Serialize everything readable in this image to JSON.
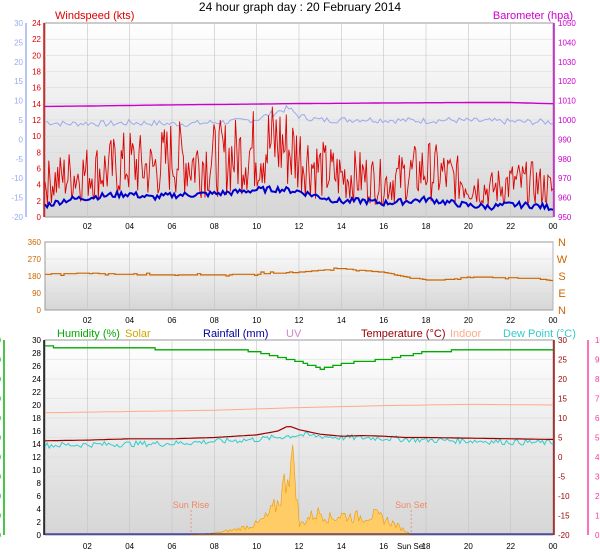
{
  "title": "24 hour graph day : 20 February 2014",
  "x_ticks": [
    "02",
    "04",
    "06",
    "08",
    "10",
    "12",
    "14",
    "16",
    "18",
    "20",
    "22",
    "00"
  ],
  "colors": {
    "wind_speed": "#dd0000",
    "wind_avg": "#0000cc",
    "barometer": "#cc00cc",
    "left_faint": "#99aaee",
    "direction": "#cc6600",
    "humidity": "#00aa00",
    "solar": "#ccaa00",
    "rainfall": "#000099",
    "uv": "#cc88cc",
    "temperature": "#990000",
    "indoor": "#ffaa88",
    "dewpoint": "#33cccc",
    "temp_axis": "#ff3399",
    "sun": "#ee8866"
  },
  "panels": {
    "wind": {
      "title_left": "Windspeed (kts)",
      "title_right": "Barometer (hpa)",
      "left_ticks": [
        "24",
        "22",
        "20",
        "18",
        "16",
        "14",
        "12",
        "10",
        "8",
        "6",
        "4",
        "2",
        "0"
      ],
      "faint_ticks": [
        "30",
        "25",
        "20",
        "15",
        "10",
        "5",
        "0",
        "-5",
        "-10",
        "-15",
        "-20"
      ],
      "right_ticks": [
        "1050",
        "1040",
        "1030",
        "1020",
        "1010",
        "1000",
        "990",
        "980",
        "970",
        "960",
        "950"
      ]
    },
    "direction": {
      "left_ticks": [
        "360",
        "270",
        "180",
        "90",
        "0"
      ],
      "compass": [
        "N",
        "W",
        "S",
        "E",
        "N"
      ]
    },
    "weather": {
      "legend": {
        "humidity": "Humidity (%)",
        "solar": "Solar",
        "rainfall": "Rainfall (mm)",
        "uv": "UV",
        "temperature": "Temperature (°C)",
        "indoor": "Indoor",
        "dewpoint": "Dew Point (°C)"
      },
      "humidity_ticks": [
        "100",
        "90",
        "80",
        "70",
        "60",
        "50",
        "40",
        "30",
        "20",
        "10",
        "0"
      ],
      "temp_ticks": [
        "30",
        "28",
        "26",
        "24",
        "22",
        "20",
        "18",
        "16",
        "14",
        "12",
        "10",
        "8",
        "6",
        "4",
        "2",
        "0"
      ],
      "right_ticks_a": [
        "30",
        "25",
        "20",
        "15",
        "10",
        "5",
        "0",
        "-5",
        "-10",
        "-15",
        "-20"
      ],
      "right_ticks_b": [
        "10",
        "9",
        "8",
        "7",
        "6",
        "5",
        "4",
        "3",
        "2",
        "1",
        "0"
      ],
      "sun_rise": "Sun Rise",
      "sun_set": "Sun Set",
      "bottom_ticks": [
        "02",
        "04",
        "06",
        "08",
        "10",
        "12",
        "14",
        "16",
        "Sun Set",
        "18",
        "20",
        "22",
        "00"
      ]
    }
  },
  "chart_data": [
    {
      "type": "line",
      "title": "Windspeed (kts)",
      "x_unit": "hour",
      "ylim": [
        0,
        25
      ],
      "series": [
        {
          "values": [
            [
              0,
              5
            ],
            [
              1,
              6
            ],
            [
              2,
              6.5
            ],
            [
              3,
              7
            ],
            [
              4,
              8
            ],
            [
              5,
              7
            ],
            [
              6,
              9
            ],
            [
              7,
              8
            ],
            [
              8,
              8.5
            ],
            [
              9,
              9
            ],
            [
              10,
              10
            ],
            [
              11,
              11
            ],
            [
              12,
              9
            ],
            [
              13,
              7
            ],
            [
              14,
              6
            ],
            [
              15,
              6
            ],
            [
              16,
              5
            ],
            [
              17,
              6
            ],
            [
              18,
              7
            ],
            [
              19,
              6
            ],
            [
              20,
              5
            ],
            [
              21,
              4
            ],
            [
              22,
              5
            ],
            [
              23,
              5
            ],
            [
              24,
              4
            ]
          ]
        },
        {
          "values": [
            [
              0,
              1.5
            ],
            [
              1,
              2.2
            ],
            [
              2,
              2.5
            ],
            [
              3,
              2.8
            ],
            [
              4,
              3
            ],
            [
              5,
              2.5
            ],
            [
              6,
              2.8
            ],
            [
              7,
              2.9
            ],
            [
              8,
              3
            ],
            [
              9,
              3.2
            ],
            [
              10,
              3.5
            ],
            [
              11,
              3.6
            ],
            [
              12,
              3.3
            ],
            [
              13,
              2.6
            ],
            [
              14,
              2
            ],
            [
              15,
              2.1
            ],
            [
              16,
              1.8
            ],
            [
              17,
              2
            ],
            [
              18,
              2.3
            ],
            [
              19,
              1.9
            ],
            [
              20,
              1.5
            ],
            [
              21,
              1.3
            ],
            [
              22,
              1.6
            ],
            [
              23,
              1.5
            ],
            [
              24,
              1.2
            ]
          ]
        }
      ]
    },
    {
      "type": "line",
      "title": "Barometer (hpa)",
      "x_unit": "hour",
      "ylim": [
        950,
        1050
      ],
      "series": [
        {
          "values": [
            [
              0,
              1007
            ],
            [
              2,
              1007.2
            ],
            [
              4,
              1007.5
            ],
            [
              6,
              1007.8
            ],
            [
              8,
              1008
            ],
            [
              10,
              1008.2
            ],
            [
              12,
              1008.5
            ],
            [
              14,
              1008.6
            ],
            [
              16,
              1008.8
            ],
            [
              18,
              1008.9
            ],
            [
              20,
              1009
            ],
            [
              22,
              1009
            ],
            [
              24,
              1008.4
            ]
          ]
        }
      ]
    },
    {
      "type": "line",
      "x_unit": "hour",
      "ylim": [
        -20,
        30
      ],
      "series": [
        {
          "values": [
            [
              0,
              4.5
            ],
            [
              1,
              4
            ],
            [
              2,
              4.2
            ],
            [
              3,
              4
            ],
            [
              4,
              4.3
            ],
            [
              5,
              4.2
            ],
            [
              6,
              4
            ],
            [
              7,
              4.1
            ],
            [
              8,
              4.4
            ],
            [
              9,
              4.6
            ],
            [
              10,
              5.2
            ],
            [
              11,
              7.2
            ],
            [
              11.5,
              8
            ],
            [
              12,
              6
            ],
            [
              13,
              5
            ],
            [
              14,
              5
            ],
            [
              15,
              5.2
            ],
            [
              16,
              5
            ],
            [
              17,
              4.9
            ],
            [
              18,
              4.8
            ],
            [
              19,
              5
            ],
            [
              20,
              4.8
            ],
            [
              21,
              4.7
            ],
            [
              22,
              4.6
            ],
            [
              23,
              4.5
            ],
            [
              24,
              4.5
            ]
          ]
        }
      ]
    },
    {
      "type": "line",
      "title": "Wind direction",
      "x_unit": "hour",
      "ylim": [
        0,
        360
      ],
      "series": [
        {
          "values": [
            [
              0,
              190
            ],
            [
              2,
              195
            ],
            [
              4,
              188
            ],
            [
              6,
              185
            ],
            [
              8,
              186
            ],
            [
              10,
              190
            ],
            [
              11,
              195
            ],
            [
              12,
              200
            ],
            [
              13,
              210
            ],
            [
              14,
              220
            ],
            [
              15,
              210
            ],
            [
              16,
              200
            ],
            [
              17,
              175
            ],
            [
              18,
              160
            ],
            [
              19,
              160
            ],
            [
              20,
              175
            ],
            [
              22,
              170
            ],
            [
              23,
              168
            ],
            [
              24,
              155
            ]
          ]
        }
      ]
    },
    {
      "type": "line",
      "title": "Humidity (%)",
      "x_unit": "hour",
      "ylim": [
        0,
        100
      ],
      "series": [
        {
          "name": "Humidity (%)",
          "values": [
            [
              0,
              97
            ],
            [
              1,
              95.5
            ],
            [
              3,
              95.5
            ],
            [
              5,
              95.5
            ],
            [
              7,
              95
            ],
            [
              9,
              95
            ],
            [
              10,
              94
            ],
            [
              11,
              91
            ],
            [
              12,
              89
            ],
            [
              13,
              85
            ],
            [
              14,
              88
            ],
            [
              15,
              89
            ],
            [
              16,
              90
            ],
            [
              17,
              92
            ],
            [
              18,
              94
            ],
            [
              20,
              95
            ],
            [
              22,
              95
            ],
            [
              24,
              95
            ]
          ]
        }
      ]
    },
    {
      "type": "line",
      "title": "Temperature (°C)",
      "x_unit": "hour",
      "ylim": [
        0,
        30
      ],
      "series": [
        {
          "name": "Temperature (°C)",
          "values": [
            [
              0,
              14.5
            ],
            [
              2,
              14.6
            ],
            [
              4,
              14.8
            ],
            [
              6,
              14.8
            ],
            [
              8,
              15
            ],
            [
              10,
              15.4
            ],
            [
              11,
              16
            ],
            [
              11.5,
              16.8
            ],
            [
              12,
              16.2
            ],
            [
              13,
              15.5
            ],
            [
              14,
              15.2
            ],
            [
              15,
              15.3
            ],
            [
              16,
              15.2
            ],
            [
              17,
              15
            ],
            [
              18,
              15
            ],
            [
              20,
              14.9
            ],
            [
              22,
              14.8
            ],
            [
              24,
              14.7
            ]
          ]
        },
        {
          "name": "Indoor",
          "values": [
            [
              0,
              18.8
            ],
            [
              4,
              19
            ],
            [
              8,
              19.2
            ],
            [
              12,
              19.6
            ],
            [
              16,
              19.9
            ],
            [
              20,
              20.1
            ],
            [
              24,
              20
            ]
          ]
        },
        {
          "name": "Dew Point (°C)",
          "values": [
            [
              0,
              13.8
            ],
            [
              2,
              13.9
            ],
            [
              4,
              14
            ],
            [
              6,
              14.1
            ],
            [
              8,
              14.4
            ],
            [
              10,
              14.7
            ],
            [
              12,
              15.4
            ],
            [
              14,
              15
            ],
            [
              16,
              14.9
            ],
            [
              18,
              14.6
            ],
            [
              20,
              14.5
            ],
            [
              22,
              14.3
            ],
            [
              24,
              14.2
            ]
          ]
        }
      ]
    },
    {
      "type": "area",
      "title": "Solar",
      "x_unit": "hour",
      "ylim": [
        0,
        1
      ],
      "series": [
        {
          "name": "Solar",
          "values": [
            [
              6.9,
              0
            ],
            [
              8,
              0.02
            ],
            [
              9,
              0.06
            ],
            [
              10,
              0.12
            ],
            [
              10.5,
              0.2
            ],
            [
              11,
              0.35
            ],
            [
              11.3,
              0.55
            ],
            [
              11.5,
              0.75
            ],
            [
              11.8,
              0.8
            ],
            [
              12,
              0.1
            ],
            [
              12.5,
              0.2
            ],
            [
              13,
              0.25
            ],
            [
              13.5,
              0.18
            ],
            [
              14,
              0.22
            ],
            [
              14.5,
              0.2
            ],
            [
              15,
              0.2
            ],
            [
              15.5,
              0.22
            ],
            [
              16,
              0.18
            ],
            [
              16.5,
              0.12
            ],
            [
              17,
              0.05
            ],
            [
              17.3,
              0
            ]
          ]
        }
      ]
    }
  ]
}
